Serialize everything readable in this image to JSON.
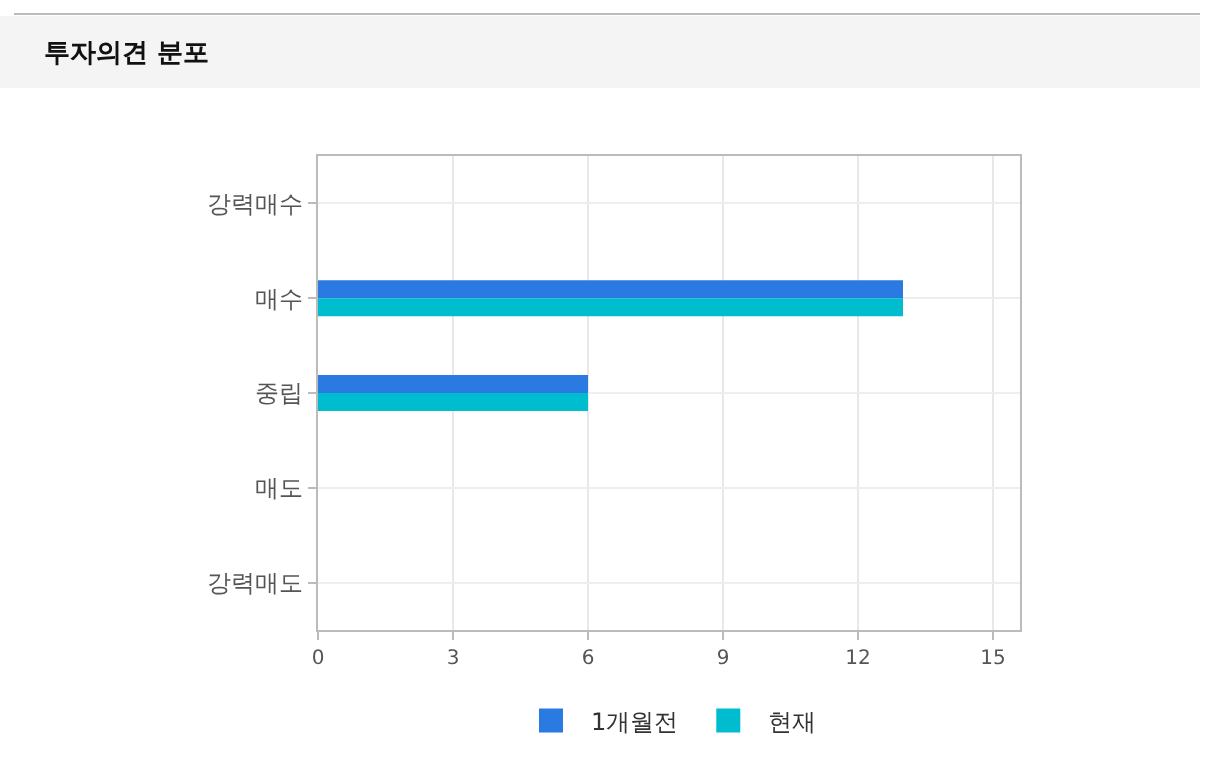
{
  "chart_data": {
    "type": "bar",
    "orientation": "horizontal",
    "title": "투자의견 분포",
    "categories": [
      "강력매수",
      "매수",
      "중립",
      "매도",
      "강력매도"
    ],
    "series": [
      {
        "name": "1개월전",
        "color": "#2a7ae2",
        "values": [
          0,
          13,
          6,
          0,
          0
        ]
      },
      {
        "name": "현재",
        "color": "#00bccf",
        "values": [
          0,
          13,
          6,
          0,
          0
        ]
      }
    ],
    "xlim": [
      0,
      15.6
    ],
    "xticks": [
      0,
      3,
      6,
      9,
      12,
      15
    ],
    "grid": true,
    "legend": "bottom"
  }
}
